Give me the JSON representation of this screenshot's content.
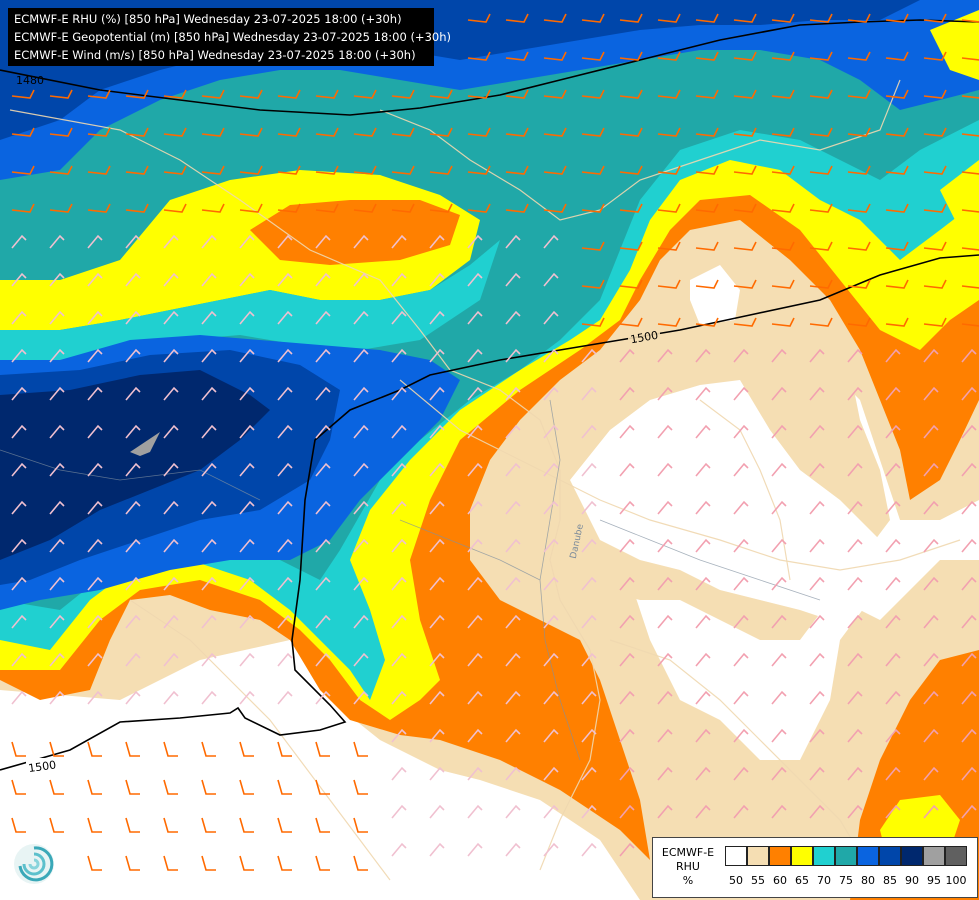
{
  "header": {
    "line1": "ECMWF-E RHU (%) [850 hPa] Wednesday 23-07-2025 18:00 (+30h)",
    "line2": "ECMWF-E Geopotential (m) [850 hPa] Wednesday 23-07-2025 18:00 (+30h)",
    "line3": "ECMWF-E Wind (m/s) [850 hPa] Wednesday 23-07-2025 18:00 (+30h)"
  },
  "contours": {
    "label_top": "1480",
    "label_mid": "1500",
    "label_left": "1500"
  },
  "map_labels": {
    "river": "Danube"
  },
  "legend": {
    "title1": "ECMWF-E",
    "title2": "RHU",
    "unit": "%",
    "colors": [
      "#ffffff",
      "#f5deb3",
      "#ff8000",
      "#ffff00",
      "#20d0d0",
      "#20a8a8",
      "#0a64e0",
      "#0046aa",
      "#00286e",
      "#a0a0a0",
      "#606060"
    ],
    "ticks": [
      "50",
      "55",
      "60",
      "65",
      "70",
      "75",
      "80",
      "85",
      "90",
      "95",
      "100"
    ]
  }
}
